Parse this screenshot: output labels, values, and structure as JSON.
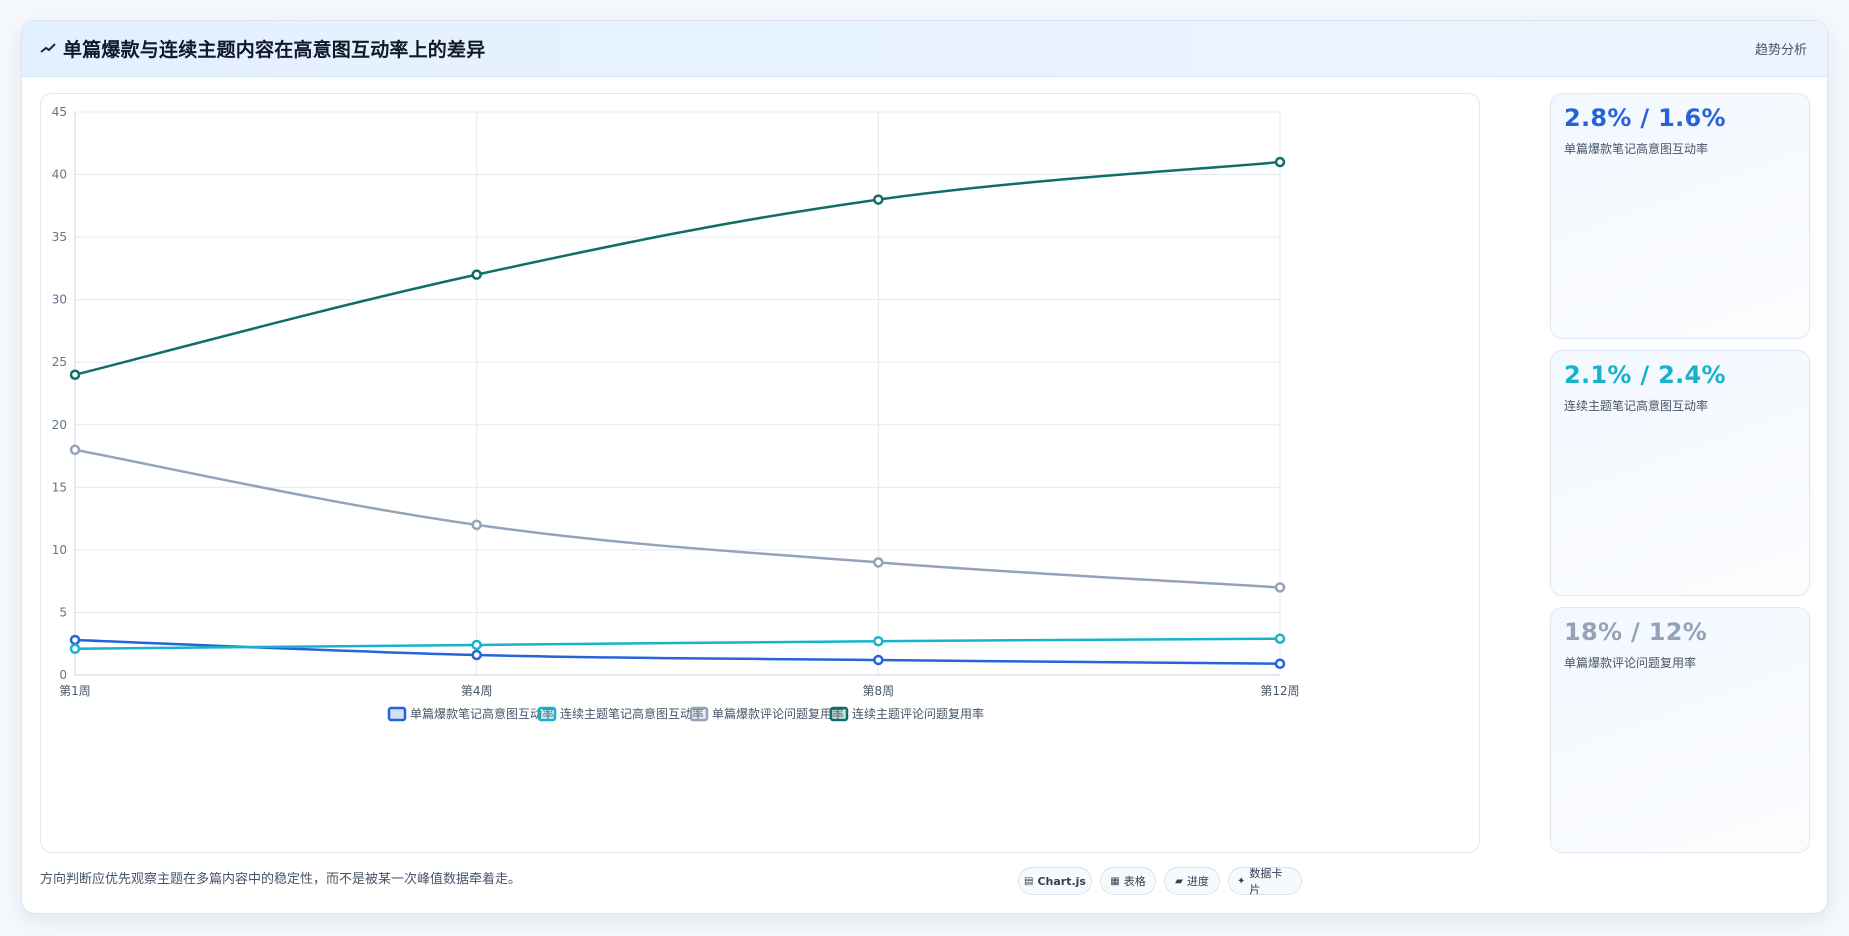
{
  "header": {
    "title": "单篇爆款与连续主题内容在高意图互动率上的差异",
    "tag": "趋势分析"
  },
  "stats": [
    {
      "value": "2.8% / 1.6%",
      "label": "单篇爆款笔记高意图互动率",
      "color": "#2563d9"
    },
    {
      "value": "2.1% / 2.4%",
      "label": "连续主题笔记高意图互动率",
      "color": "#17b3c9"
    },
    {
      "value": "18% / 12%",
      "label": "单篇爆款评论问题复用率",
      "color": "#94a3b8"
    }
  ],
  "footer": {
    "note": "方向判断应优先观察主题在多篇内容中的稳定性，而不是被某一次峰值数据牵着走。",
    "buttons": [
      {
        "icon": "▤",
        "label": "Chart.js",
        "icon_name": "chart-icon"
      },
      {
        "icon": "▦",
        "label": "表格",
        "icon_name": "table-icon"
      },
      {
        "icon": "▰",
        "label": "进度",
        "icon_name": "progress-icon"
      },
      {
        "icon": "✦",
        "label": "数据卡片",
        "icon_name": "card-icon"
      }
    ]
  },
  "chart_data": {
    "type": "line",
    "categories": [
      "第1周",
      "第4周",
      "第8周",
      "第12周"
    ],
    "ylim": [
      0,
      45
    ],
    "yticks": [
      0,
      5,
      10,
      15,
      20,
      25,
      30,
      35,
      40,
      45
    ],
    "grid": true,
    "legend_position": "bottom",
    "series": [
      {
        "name": "单篇爆款笔记高意图互动率",
        "values": [
          2.8,
          1.6,
          1.2,
          0.9
        ],
        "color": "#2563d9"
      },
      {
        "name": "连续主题笔记高意图互动率",
        "values": [
          2.1,
          2.4,
          2.7,
          2.9
        ],
        "color": "#17b3c9"
      },
      {
        "name": "单篇爆款评论问题复用率",
        "values": [
          18,
          12,
          9,
          7
        ],
        "color": "#94a3b8"
      },
      {
        "name": "连续主题评论问题复用率",
        "values": [
          24,
          32,
          38,
          41
        ],
        "color": "#0f6e66"
      }
    ]
  }
}
